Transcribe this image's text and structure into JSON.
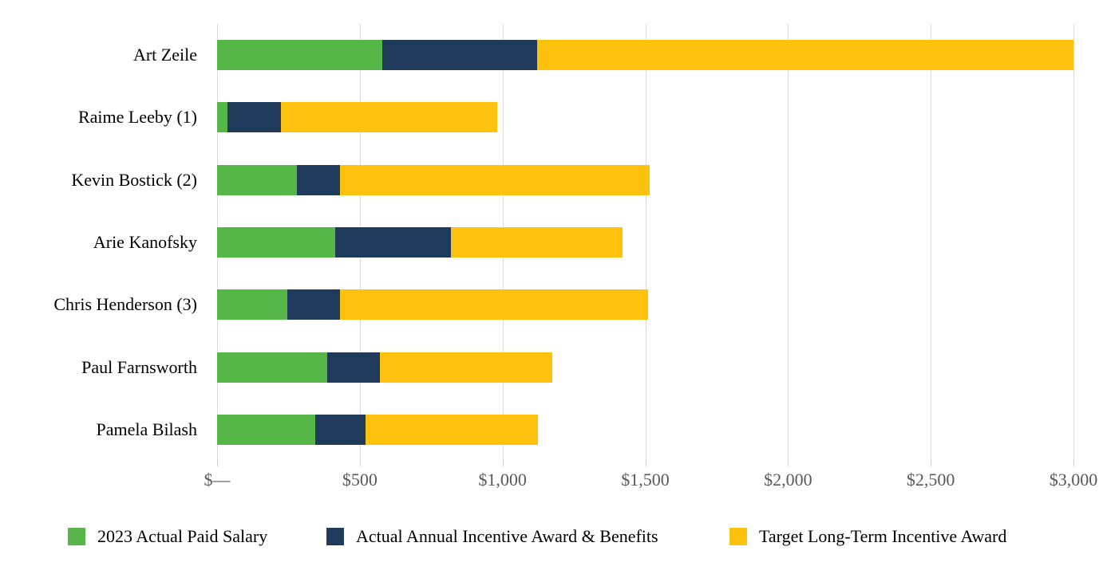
{
  "chart_data": {
    "type": "bar",
    "orientation": "horizontal-stacked",
    "title": "",
    "xlabel": "",
    "ylabel": "",
    "xlim": [
      0,
      3000
    ],
    "grid": "vertical",
    "legend_position": "bottom",
    "categories": [
      "Art Zeile",
      "Raime Leeby (1)",
      "Kevin Bostick (2)",
      "Arie Kanofsky",
      "Chris Henderson (3)",
      "Paul Farnsworth",
      "Pamela Bilash"
    ],
    "series": [
      {
        "name": "2023 Actual Paid Salary",
        "color": "#56b648",
        "values": [
          580,
          35,
          280,
          415,
          245,
          385,
          345
        ]
      },
      {
        "name": "Actual Annual Incentive Award & Benefits",
        "color": "#203a5c",
        "values": [
          540,
          190,
          150,
          405,
          185,
          185,
          175
        ]
      },
      {
        "name": "Target Long-Term Incentive Award",
        "color": "#fec10e",
        "values": [
          1880,
          755,
          1085,
          600,
          1080,
          605,
          605
        ]
      }
    ],
    "x_ticks": [
      {
        "label": "$—",
        "value": 0
      },
      {
        "label": "$500",
        "value": 500
      },
      {
        "label": "$1,000",
        "value": 1000
      },
      {
        "label": "$1,500",
        "value": 1500
      },
      {
        "label": "$2,000",
        "value": 2000
      },
      {
        "label": "$2,500",
        "value": 2500
      },
      {
        "label": "$3,000",
        "value": 3000
      }
    ]
  },
  "colors": {
    "background": "#ffffff",
    "gridline": "#d9d9d9",
    "axis_text": "#595959",
    "label_text": "#000000"
  }
}
